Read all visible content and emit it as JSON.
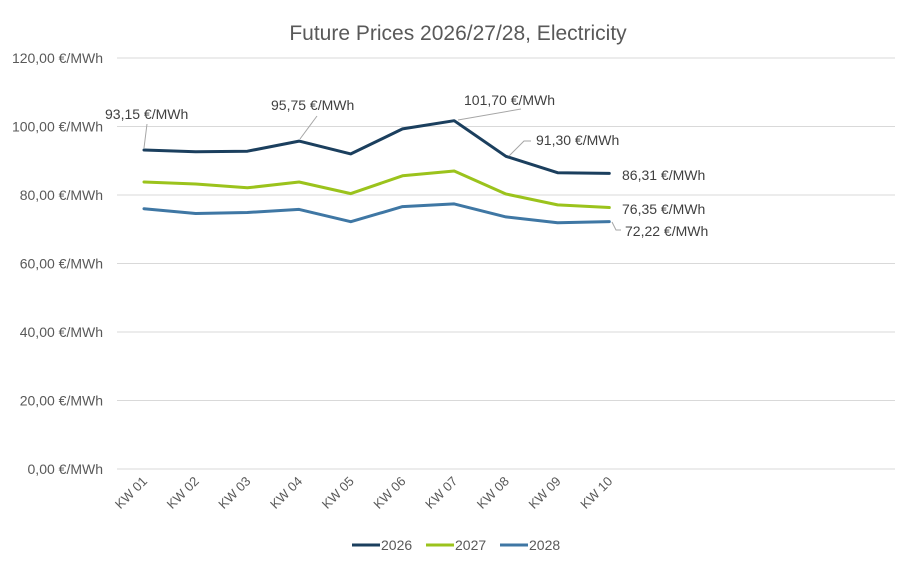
{
  "chart_data": {
    "type": "line",
    "title": "Future Prices 2026/27/28, Electricity",
    "xlabel": "",
    "ylabel": "",
    "ylim": [
      0,
      120
    ],
    "yticks": [
      0,
      20,
      40,
      60,
      80,
      100,
      120
    ],
    "ytick_labels": [
      "0,00 €/MWh",
      "20,00 €/MWh",
      "40,00 €/MWh",
      "60,00 €/MWh",
      "80,00 €/MWh",
      "100,00 €/MWh",
      "120,00 €/MWh"
    ],
    "grid": true,
    "legend_position": "bottom",
    "categories": [
      "KW 01",
      "KW 02",
      "KW 03",
      "KW 04",
      "KW 05",
      "KW 06",
      "KW 07",
      "KW 08",
      "KW 09",
      "KW 10"
    ],
    "series": [
      {
        "name": "2026",
        "color": "#1b3f5e",
        "values": [
          93.15,
          92.6,
          92.8,
          95.75,
          92.0,
          99.3,
          101.7,
          91.3,
          86.5,
          86.31
        ]
      },
      {
        "name": "2027",
        "color": "#9bc31c",
        "values": [
          83.8,
          83.2,
          82.1,
          83.8,
          80.4,
          85.6,
          87.0,
          80.3,
          77.1,
          76.35
        ]
      },
      {
        "name": "2028",
        "color": "#3f77a4",
        "values": [
          76.0,
          74.6,
          74.9,
          75.8,
          72.2,
          76.6,
          77.4,
          73.6,
          71.9,
          72.22
        ]
      }
    ],
    "annotations": [
      {
        "series": 0,
        "index": 0,
        "text": "93,15 €/MWh"
      },
      {
        "series": 0,
        "index": 3,
        "text": "95,75 €/MWh"
      },
      {
        "series": 0,
        "index": 6,
        "text": "101,70 €/MWh"
      },
      {
        "series": 0,
        "index": 7,
        "text": "91,30 €/MWh"
      },
      {
        "series": 0,
        "index": 9,
        "text": "86,31 €/MWh"
      },
      {
        "series": 1,
        "index": 9,
        "text": "76,35 €/MWh"
      },
      {
        "series": 2,
        "index": 9,
        "text": "72,22 €/MWh"
      }
    ]
  }
}
